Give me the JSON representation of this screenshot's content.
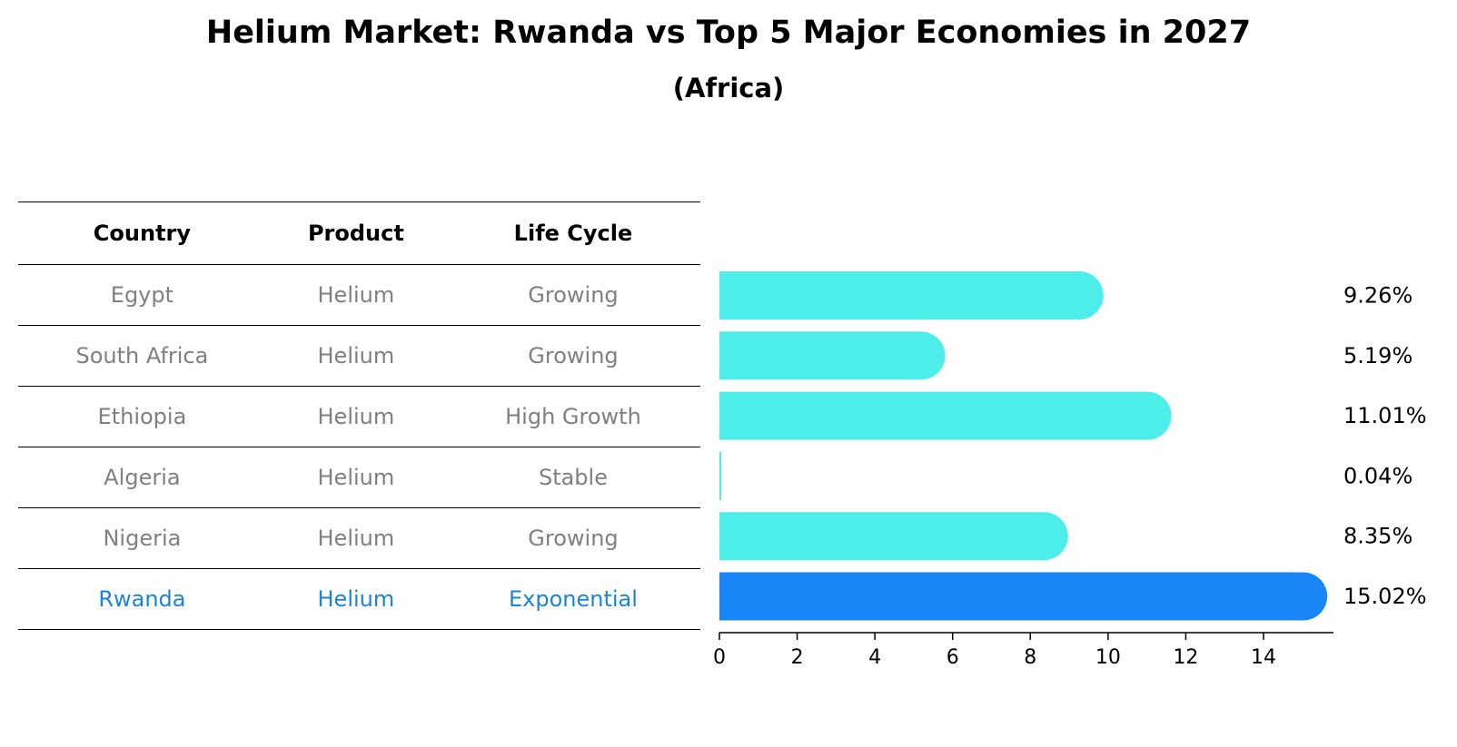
{
  "title": "Helium Market: Rwanda vs Top 5 Major Economies in 2027",
  "subtitle": "(Africa)",
  "table": {
    "headers": [
      "Country",
      "Product",
      "Life Cycle"
    ],
    "rows": [
      [
        "Egypt",
        "Helium",
        "Growing"
      ],
      [
        "South Africa",
        "Helium",
        "Growing"
      ],
      [
        "Ethiopia",
        "Helium",
        "High Growth"
      ],
      [
        "Algeria",
        "Helium",
        "Stable"
      ],
      [
        "Nigeria",
        "Helium",
        "Growing"
      ],
      [
        "Rwanda",
        "Helium",
        "Exponential"
      ]
    ],
    "highlight_row": 5
  },
  "chart_data": {
    "type": "bar",
    "orientation": "horizontal",
    "categories": [
      "Egypt",
      "South Africa",
      "Ethiopia",
      "Algeria",
      "Nigeria",
      "Rwanda"
    ],
    "values": [
      9.26,
      5.19,
      11.01,
      0.04,
      8.35,
      15.02
    ],
    "value_labels": [
      "9.26%",
      "5.19%",
      "11.01%",
      "0.04%",
      "8.35%",
      "15.02%"
    ],
    "xlim": [
      0,
      15.8
    ],
    "xticks": [
      0,
      2,
      4,
      6,
      8,
      10,
      12,
      14
    ],
    "highlight_index": 5,
    "colors": {
      "default": "#4deeea",
      "highlight": "#1a85f7"
    }
  }
}
